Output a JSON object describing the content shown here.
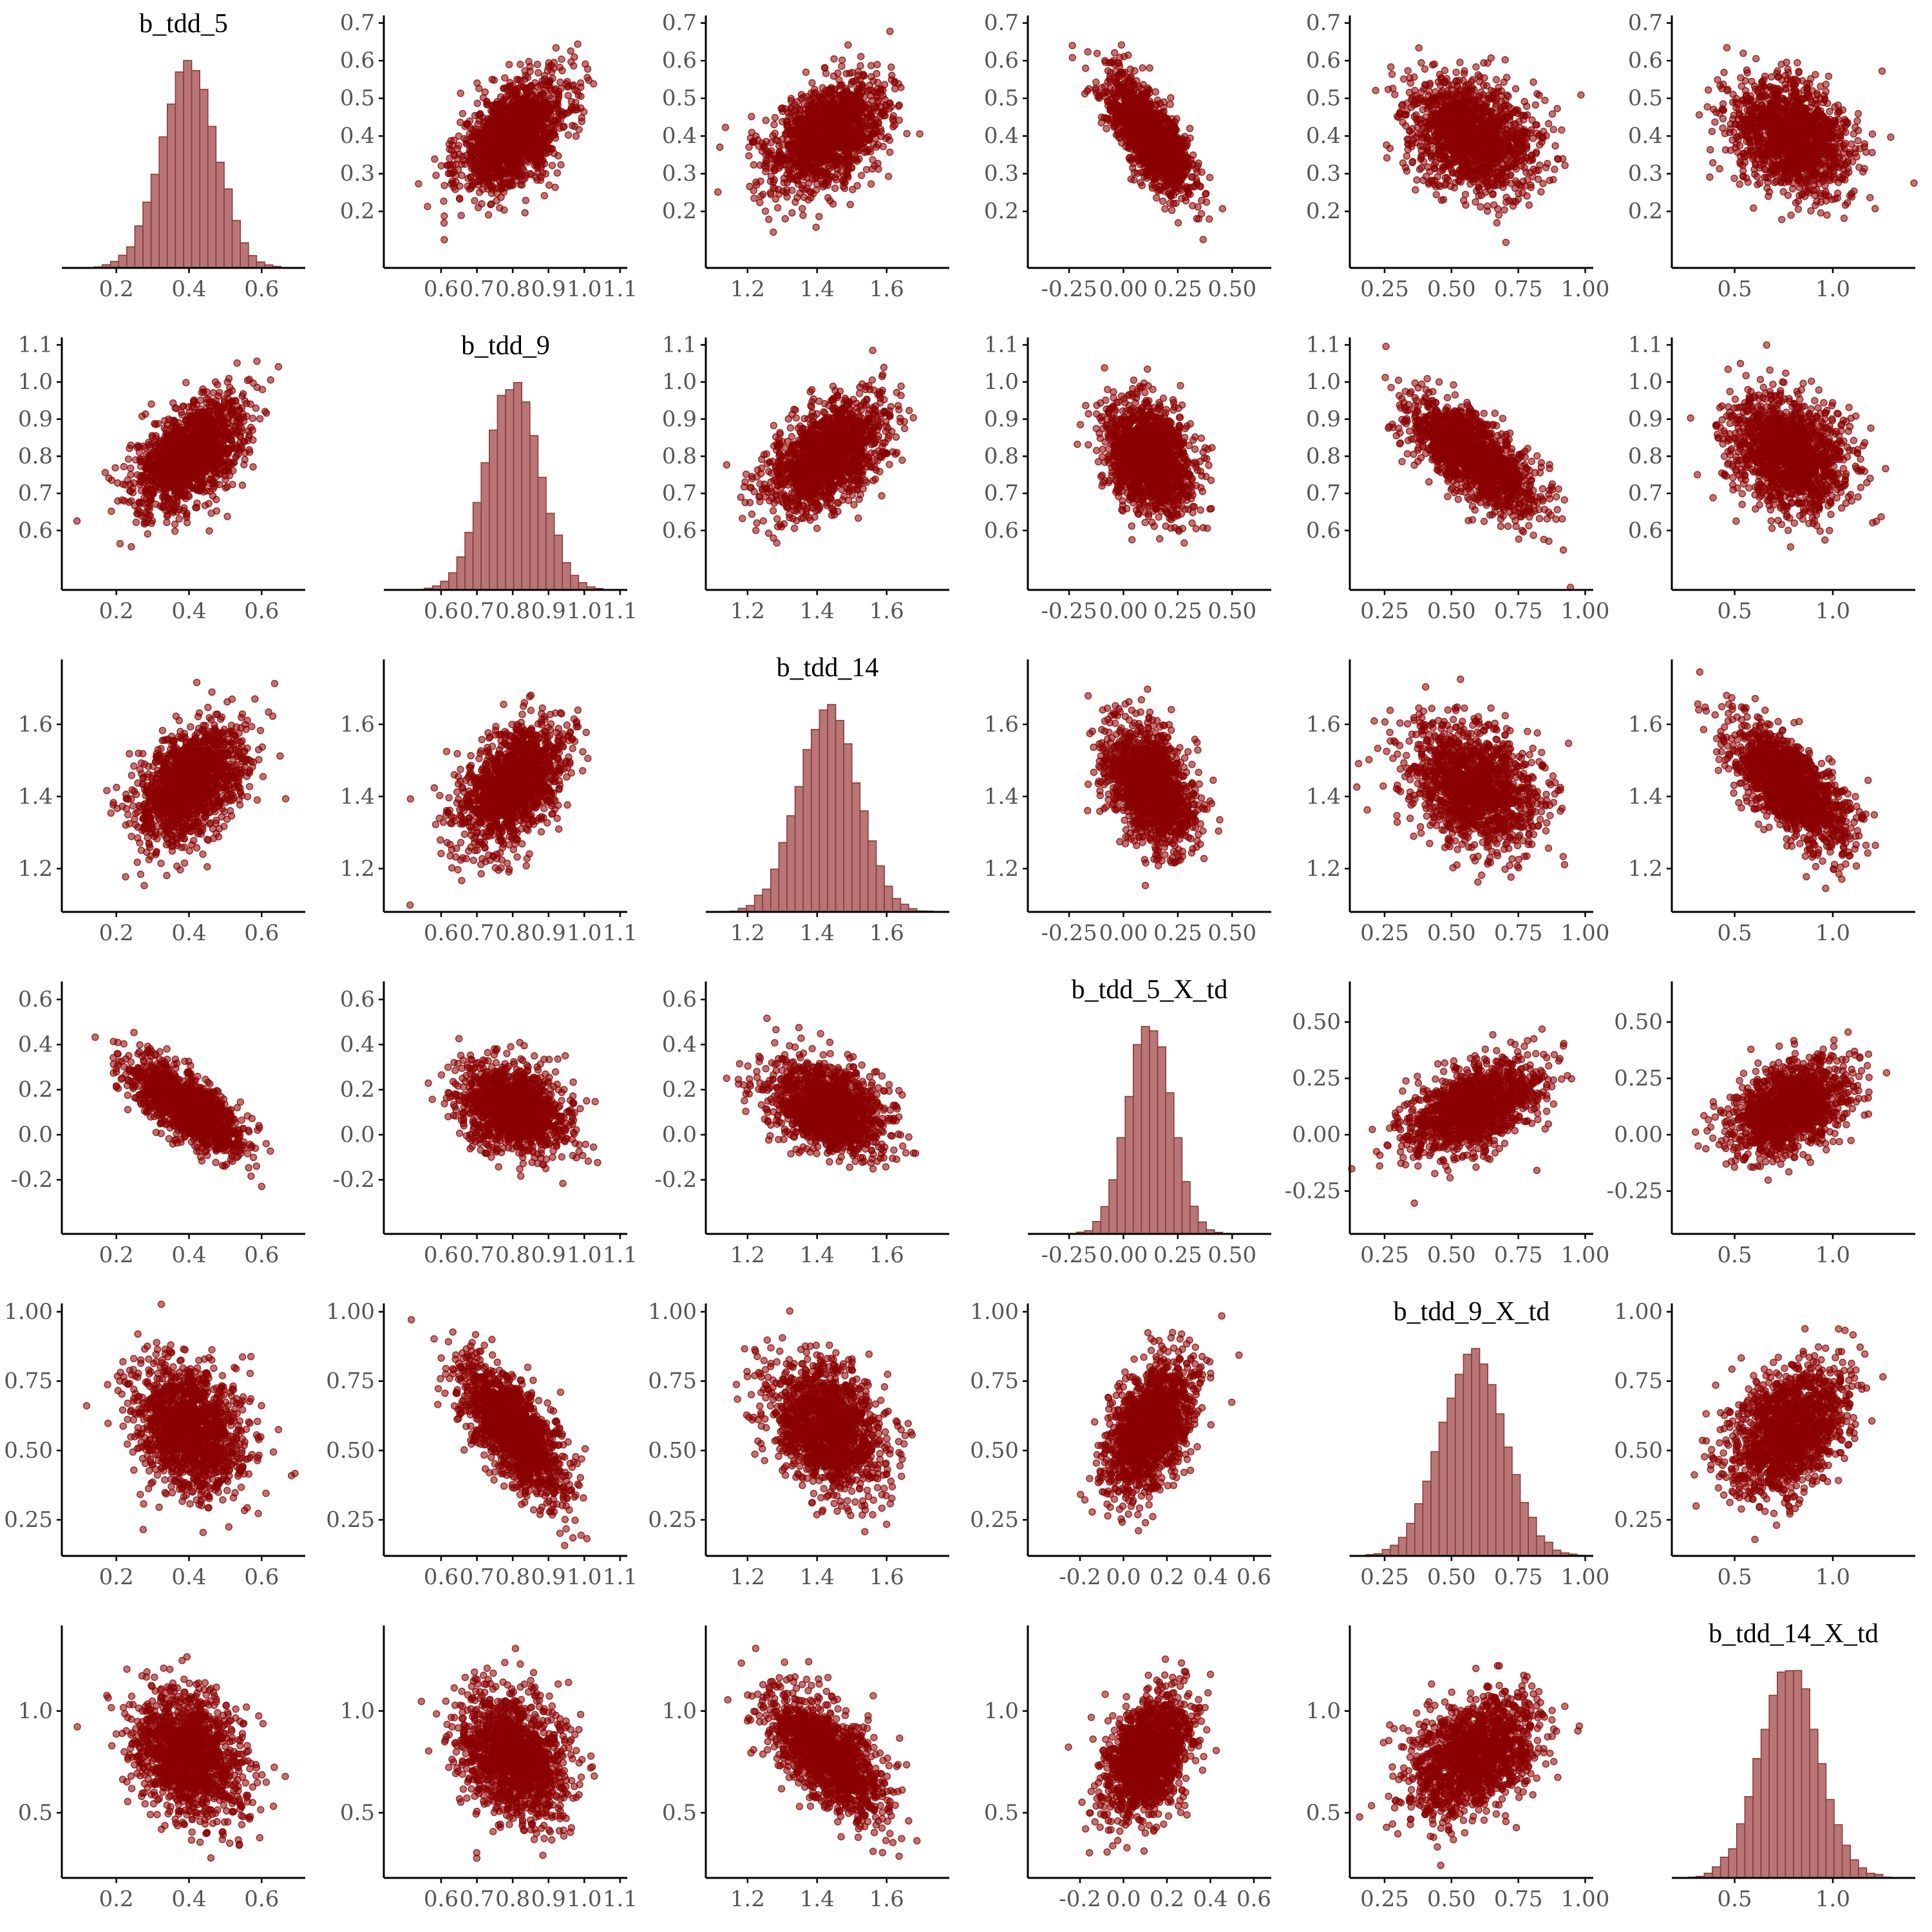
{
  "chart_data": {
    "type": "scatter",
    "layout": "pairs-matrix",
    "title": "",
    "colors": {
      "point_fill": "#8B0000",
      "point_opacity": 0.55,
      "hist_fill": "#B87676",
      "hist_stroke": "#8B3A3A",
      "axis": "#000000",
      "tick_text": "#555555"
    },
    "grid": false,
    "legend": "none",
    "variables": [
      {
        "name": "b_tdd_5",
        "mean": 0.4,
        "sd": 0.075,
        "lim": [
          0.05,
          0.72
        ],
        "xticks": [
          "0.2",
          "0.4",
          "0.6"
        ],
        "yticks": [
          "0.2",
          "0.3",
          "0.4",
          "0.5",
          "0.6",
          "0.7"
        ]
      },
      {
        "name": "b_tdd_9",
        "mean": 0.8,
        "sd": 0.075,
        "lim": [
          0.44,
          1.12
        ],
        "xticks": [
          "0.6",
          "0.7",
          "0.8",
          "0.9",
          "1.0",
          "1.1"
        ],
        "yticks": [
          "0.6",
          "0.7",
          "0.8",
          "0.9",
          "1.0",
          "1.1"
        ]
      },
      {
        "name": "b_tdd_14",
        "mean": 1.43,
        "sd": 0.085,
        "lim": [
          1.08,
          1.78
        ],
        "xticks": [
          "1.2",
          "1.4",
          "1.6"
        ],
        "yticks": [
          "1.2",
          "1.4",
          "1.6"
        ]
      },
      {
        "name": "b_tdd_5_X_td",
        "mean": 0.12,
        "sd": 0.1,
        "lim": [
          -0.44,
          0.68
        ],
        "xticks": [
          "-0.25",
          "0.00",
          "0.25",
          "0.50"
        ],
        "yticks": [
          "-0.2",
          "0.0",
          "0.2",
          "0.4",
          "0.6"
        ],
        "xticks_alt": [
          "-0.2",
          "0.0",
          "0.2",
          "0.4",
          "0.6"
        ],
        "yticks_alt": [
          "-0.25",
          "0.00",
          "0.25",
          "0.50"
        ]
      },
      {
        "name": "b_tdd_9_X_td",
        "mean": 0.58,
        "sd": 0.12,
        "lim": [
          0.12,
          1.03
        ],
        "xticks": [
          "0.25",
          "0.50",
          "0.75",
          "1.00"
        ],
        "yticks": [
          "0.25",
          "0.50",
          "0.75",
          "1.00"
        ]
      },
      {
        "name": "b_tdd_14_X_td",
        "mean": 0.78,
        "sd": 0.15,
        "lim": [
          0.18,
          1.42
        ],
        "xticks": [
          "0.5",
          "1.0"
        ],
        "yticks": [
          "0.5",
          "1.0"
        ]
      }
    ],
    "correlations": [
      [
        1.0,
        0.5,
        0.45,
        -0.7,
        -0.25,
        -0.25
      ],
      [
        0.5,
        1.0,
        0.45,
        -0.3,
        -0.7,
        -0.25
      ],
      [
        0.45,
        0.45,
        1.0,
        -0.35,
        -0.3,
        -0.65
      ],
      [
        -0.7,
        -0.3,
        -0.35,
        1.0,
        0.45,
        0.4
      ],
      [
        -0.25,
        -0.7,
        -0.3,
        0.45,
        1.0,
        0.4
      ],
      [
        -0.25,
        -0.25,
        -0.65,
        0.4,
        0.4,
        1.0
      ]
    ],
    "n_points_per_panel": 1400,
    "hist_bins": 30
  }
}
